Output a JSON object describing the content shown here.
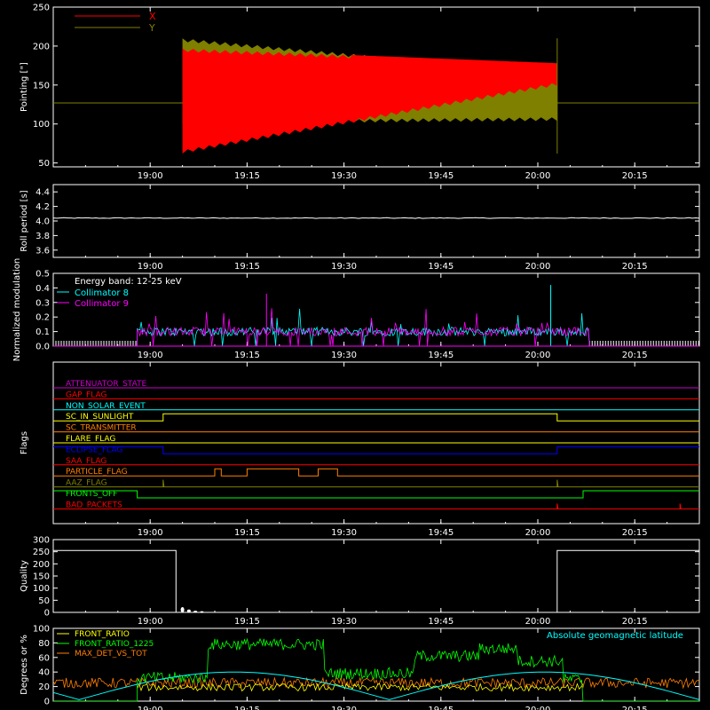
{
  "time_ticks": [
    "19:00",
    "19:15",
    "19:30",
    "19:45",
    "20:00",
    "20:15"
  ],
  "chart_data": [
    {
      "type": "line",
      "ylabel": "Pointing [\"]",
      "ylim": [
        45,
        250
      ],
      "yticks": [
        "50",
        "100",
        "150",
        "200",
        "250"
      ],
      "legend_placement": "top-left",
      "series": [
        {
          "name": "X",
          "color": "#ff0000",
          "outside": 127,
          "envelope_start": [
            62,
            197
          ],
          "envelope_end": [
            149,
            178
          ]
        },
        {
          "name": "Y",
          "color": "#7f7f00",
          "outside": 127,
          "envelope_start": [
            100,
            210
          ],
          "envelope_end": [
            104,
            166
          ]
        }
      ],
      "x": [
        "19:00",
        "19:15",
        "19:30",
        "19:45",
        "20:00",
        "20:15"
      ]
    },
    {
      "type": "line",
      "ylabel": "Roll period [s]",
      "ylim": [
        3.5,
        4.5
      ],
      "yticks": [
        "3.6",
        "3.8",
        "4.0",
        "4.2",
        "4.4"
      ],
      "series": [
        {
          "name": "",
          "color": "#ffffff",
          "value": 4.04
        }
      ]
    },
    {
      "type": "bar",
      "ylabel": "Normalized modulation",
      "ylim": [
        0.0,
        0.5
      ],
      "yticks": [
        "0.0",
        "0.1",
        "0.2",
        "0.3",
        "0.4",
        "0.5"
      ],
      "annotation": "Energy band: 12-25 keV",
      "legend_placement": "top-left",
      "series": [
        {
          "name": "Collimator 8",
          "color": "#00ffff",
          "typical": 0.1
        },
        {
          "name": "Collimator 9",
          "color": "#ff00ff",
          "typical": 0.1
        }
      ]
    },
    {
      "type": "line",
      "ylabel": "Flags",
      "series": [
        {
          "name": "ATTENUATOR_STATE",
          "color": "#cc00cc"
        },
        {
          "name": "GAP_FLAG",
          "color": "#ff0000"
        },
        {
          "name": "NON_SOLAR_EVENT",
          "color": "#00ffff"
        },
        {
          "name": "SC_IN_SUNLIGHT",
          "color": "#ffff00"
        },
        {
          "name": "SC_TRANSMITTER",
          "color": "#ff7f00"
        },
        {
          "name": "FLARE_FLAG",
          "color": "#ffff00"
        },
        {
          "name": "ECLIPSE_FLAG",
          "color": "#0000ff"
        },
        {
          "name": "SAA_FLAG",
          "color": "#ff0000"
        },
        {
          "name": "PARTICLE_FLAG",
          "color": "#ff7f00"
        },
        {
          "name": "AAZ_FLAG",
          "color": "#7f7f00"
        },
        {
          "name": "FRONTS_OFF",
          "color": "#00ff00"
        },
        {
          "name": "BAD_PACKETS",
          "color": "#ff0000"
        }
      ]
    },
    {
      "type": "line",
      "ylabel": "Quality",
      "ylim": [
        0,
        300
      ],
      "yticks": [
        "0",
        "50",
        "100",
        "150",
        "200",
        "250",
        "300"
      ],
      "series": [
        {
          "name": "",
          "color": "#ffffff",
          "outside": 255,
          "inside": 0
        }
      ]
    },
    {
      "type": "line",
      "ylabel": "Degrees or %",
      "ylim": [
        0,
        100
      ],
      "yticks": [
        "0",
        "20",
        "40",
        "60",
        "80",
        "100"
      ],
      "annotation": "Absolute geomagnetic latitude",
      "legend_placement": "top-left",
      "series": [
        {
          "name": "FRONT_RATIO",
          "color": "#ffff00"
        },
        {
          "name": "FRONT_RATIO_1225",
          "color": "#00ff00"
        },
        {
          "name": "MAX_DET_VS_TOT",
          "color": "#ff7f00"
        },
        {
          "name": "Absolute geomagnetic latitude",
          "color": "#00ffff"
        }
      ]
    }
  ]
}
